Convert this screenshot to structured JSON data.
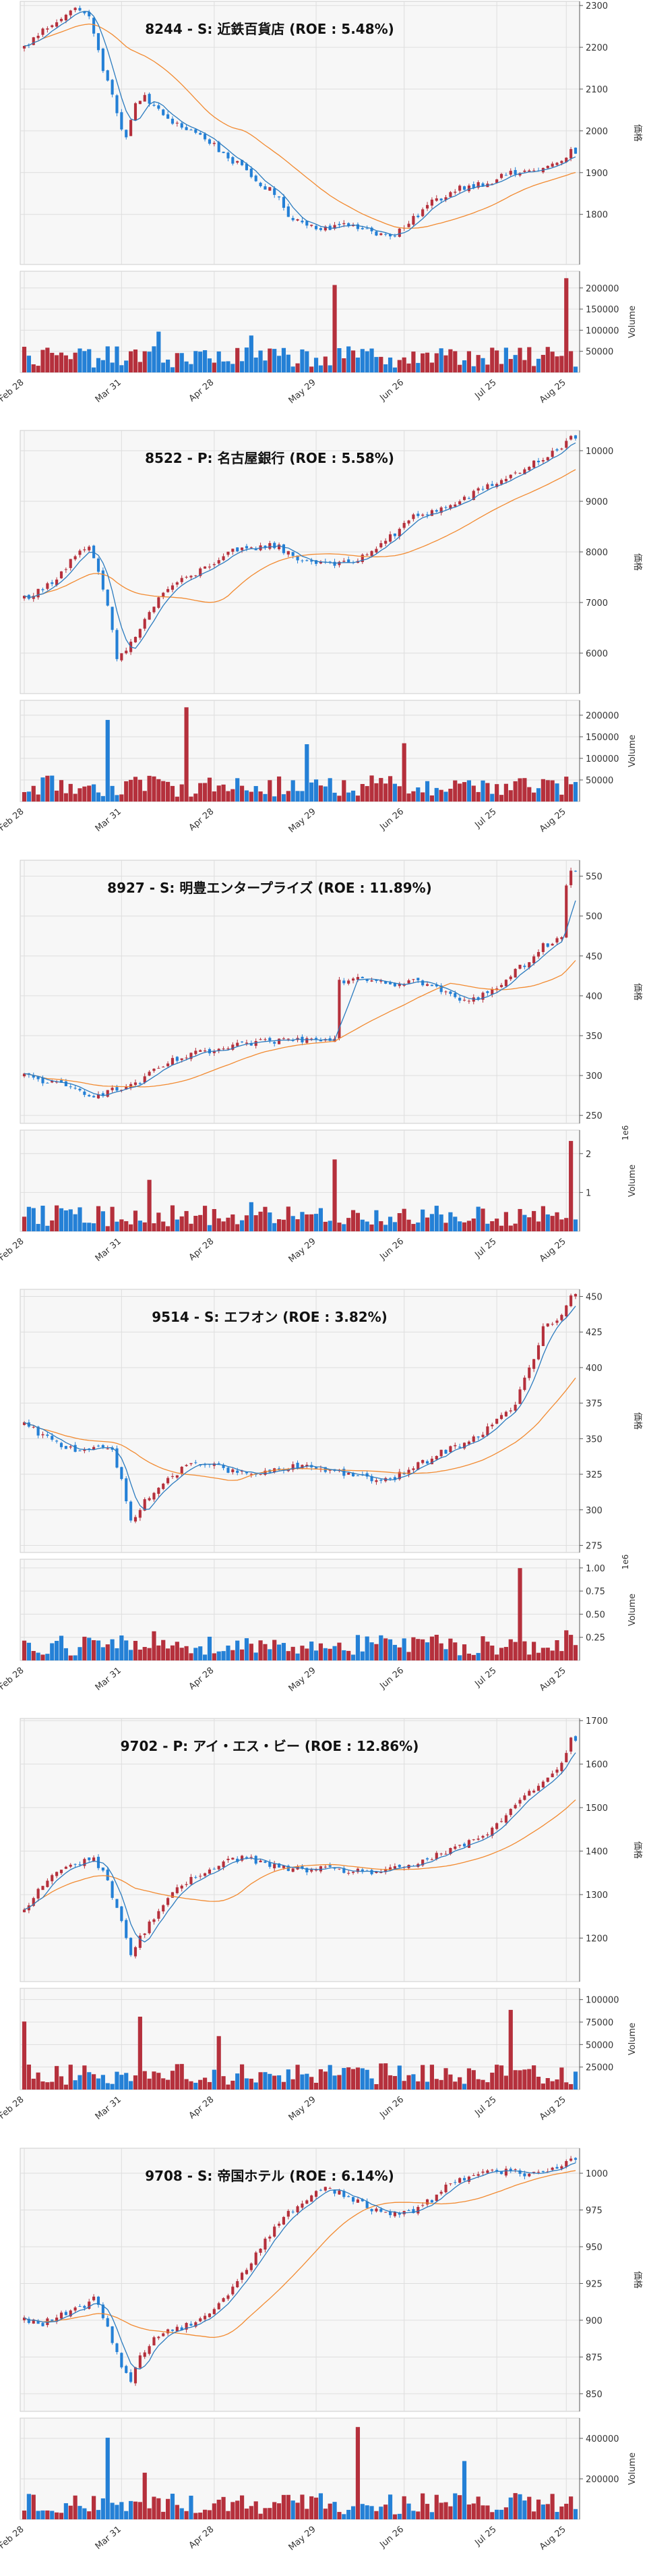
{
  "colors": {
    "up": "#b5303c",
    "down": "#2480d6",
    "ma_short": "#2b7bbf",
    "ma_long": "#f28a30",
    "panel_bg": "#f7f7f7",
    "grid": "#dedede"
  },
  "x_ticks": [
    "Feb 28",
    "Mar 31",
    "Apr 28",
    "May 29",
    "Jun 26",
    "Jul 25",
    "Aug 25"
  ],
  "chart_data": [
    {
      "type": "candlestick",
      "title": "8244 - S: 近鉄百貨店 (ROE : 5.48%)",
      "ylabel": "価格",
      "volume_label": "Volume",
      "volume_exponent": "",
      "ylim": [
        1680,
        2310
      ],
      "yticks": [
        1800,
        1900,
        2000,
        2100,
        2200,
        2300
      ],
      "vol_max": 230000,
      "vol_ticks": [
        50000,
        100000,
        150000,
        200000
      ],
      "vol_tick_labels": [
        "50000",
        "100000",
        "150000",
        "200000"
      ],
      "path": [
        [
          0,
          2200
        ],
        [
          4,
          2240
        ],
        [
          7,
          2265
        ],
        [
          10,
          2285
        ],
        [
          12,
          2295
        ],
        [
          14,
          2270
        ],
        [
          17,
          2150
        ],
        [
          19,
          2080
        ],
        [
          21,
          2010
        ],
        [
          22,
          1985
        ],
        [
          24,
          2060
        ],
        [
          26,
          2085
        ],
        [
          28,
          2055
        ],
        [
          31,
          2030
        ],
        [
          34,
          2010
        ],
        [
          37,
          1995
        ],
        [
          40,
          1975
        ],
        [
          43,
          1945
        ],
        [
          46,
          1920
        ],
        [
          50,
          1880
        ],
        [
          54,
          1850
        ],
        [
          57,
          1800
        ],
        [
          60,
          1780
        ],
        [
          63,
          1770
        ],
        [
          67,
          1770
        ],
        [
          71,
          1775
        ],
        [
          75,
          1760
        ],
        [
          79,
          1745
        ],
        [
          82,
          1765
        ],
        [
          85,
          1800
        ],
        [
          88,
          1830
        ],
        [
          91,
          1845
        ],
        [
          94,
          1865
        ],
        [
          97,
          1870
        ],
        [
          101,
          1880
        ],
        [
          104,
          1895
        ],
        [
          107,
          1900
        ],
        [
          110,
          1905
        ],
        [
          113,
          1915
        ],
        [
          116,
          1925
        ],
        [
          118,
          1950
        ]
      ],
      "vol_spikes": [
        [
          67,
          0.9
        ],
        [
          117,
          0.97
        ],
        [
          49,
          0.38
        ],
        [
          29,
          0.42
        ]
      ]
    },
    {
      "type": "candlestick",
      "title": "8522 - P: 名古屋銀行 (ROE : 5.58%)",
      "ylabel": "価格",
      "volume_label": "Volume",
      "volume_exponent": "",
      "ylim": [
        5200,
        10400
      ],
      "yticks": [
        6000,
        7000,
        8000,
        9000,
        10000
      ],
      "vol_max": 225000,
      "vol_ticks": [
        50000,
        100000,
        150000,
        200000
      ],
      "vol_tick_labels": [
        "50000",
        "100000",
        "150000",
        "200000"
      ],
      "path": [
        [
          0,
          7100
        ],
        [
          4,
          7250
        ],
        [
          8,
          7600
        ],
        [
          11,
          7950
        ],
        [
          14,
          8050
        ],
        [
          16,
          7600
        ],
        [
          18,
          6900
        ],
        [
          20,
          5900
        ],
        [
          22,
          6050
        ],
        [
          24,
          6350
        ],
        [
          27,
          6800
        ],
        [
          30,
          7200
        ],
        [
          33,
          7400
        ],
        [
          36,
          7500
        ],
        [
          39,
          7700
        ],
        [
          42,
          7850
        ],
        [
          45,
          8000
        ],
        [
          49,
          8050
        ],
        [
          52,
          8150
        ],
        [
          55,
          8100
        ],
        [
          58,
          7900
        ],
        [
          62,
          7800
        ],
        [
          66,
          7800
        ],
        [
          70,
          7750
        ],
        [
          73,
          7900
        ],
        [
          76,
          8100
        ],
        [
          80,
          8350
        ],
        [
          84,
          8700
        ],
        [
          88,
          8800
        ],
        [
          92,
          8900
        ],
        [
          96,
          9100
        ],
        [
          100,
          9300
        ],
        [
          104,
          9450
        ],
        [
          108,
          9650
        ],
        [
          112,
          9850
        ],
        [
          116,
          10050
        ],
        [
          118,
          10250
        ]
      ],
      "vol_spikes": [
        [
          35,
          0.97
        ],
        [
          18,
          0.84
        ],
        [
          61,
          0.59
        ],
        [
          82,
          0.6
        ]
      ]
    },
    {
      "type": "candlestick",
      "title": "8927 - S: 明豊エンタープライズ (ROE : 11.89%)",
      "ylabel": "価格",
      "volume_label": "Volume",
      "volume_exponent": "1e6",
      "ylim": [
        240,
        570
      ],
      "yticks": [
        250,
        300,
        350,
        400,
        450,
        500,
        550
      ],
      "vol_max": 2500000,
      "vol_ticks": [
        1000000,
        2000000
      ],
      "vol_tick_labels": [
        "1",
        "2"
      ],
      "path": [
        [
          0,
          300
        ],
        [
          5,
          292
        ],
        [
          10,
          284
        ],
        [
          15,
          276
        ],
        [
          20,
          282
        ],
        [
          25,
          292
        ],
        [
          28,
          305
        ],
        [
          32,
          318
        ],
        [
          36,
          326
        ],
        [
          40,
          330
        ],
        [
          44,
          334
        ],
        [
          48,
          340
        ],
        [
          52,
          342
        ],
        [
          56,
          345
        ],
        [
          60,
          345
        ],
        [
          64,
          347
        ],
        [
          67,
          348
        ],
        [
          68,
          418
        ],
        [
          72,
          424
        ],
        [
          76,
          420
        ],
        [
          80,
          415
        ],
        [
          84,
          420
        ],
        [
          88,
          412
        ],
        [
          92,
          400
        ],
        [
          96,
          392
        ],
        [
          100,
          405
        ],
        [
          104,
          420
        ],
        [
          108,
          440
        ],
        [
          112,
          462
        ],
        [
          116,
          476
        ],
        [
          117,
          540
        ],
        [
          118,
          555
        ]
      ],
      "vol_spikes": [
        [
          118,
          0.93
        ],
        [
          67,
          0.74
        ],
        [
          27,
          0.53
        ],
        [
          49,
          0.3
        ]
      ]
    },
    {
      "type": "candlestick",
      "title": "9514 - S: エフオン (ROE : 3.82%)",
      "ylabel": "価格",
      "volume_label": "Volume",
      "volume_exponent": "1e6",
      "ylim": [
        270,
        455
      ],
      "yticks": [
        275,
        300,
        325,
        350,
        375,
        400,
        425,
        450
      ],
      "vol_max": 1050000,
      "vol_ticks": [
        250000,
        500000,
        750000,
        1000000
      ],
      "vol_tick_labels": [
        "0.25",
        "0.50",
        "0.75",
        "1.00"
      ],
      "path": [
        [
          0,
          360
        ],
        [
          4,
          352
        ],
        [
          8,
          345
        ],
        [
          12,
          342
        ],
        [
          16,
          346
        ],
        [
          19,
          340
        ],
        [
          21,
          320
        ],
        [
          23,
          292
        ],
        [
          25,
          302
        ],
        [
          28,
          312
        ],
        [
          31,
          322
        ],
        [
          35,
          330
        ],
        [
          39,
          334
        ],
        [
          42,
          330
        ],
        [
          46,
          326
        ],
        [
          50,
          325
        ],
        [
          54,
          327
        ],
        [
          58,
          330
        ],
        [
          62,
          330
        ],
        [
          66,
          328
        ],
        [
          70,
          325
        ],
        [
          74,
          322
        ],
        [
          78,
          320
        ],
        [
          82,
          326
        ],
        [
          86,
          333
        ],
        [
          90,
          340
        ],
        [
          94,
          346
        ],
        [
          98,
          352
        ],
        [
          102,
          362
        ],
        [
          106,
          375
        ],
        [
          108,
          392
        ],
        [
          110,
          405
        ],
        [
          112,
          428
        ],
        [
          114,
          432
        ],
        [
          116,
          435
        ],
        [
          118,
          450
        ]
      ],
      "vol_spikes": [
        [
          107,
          0.95
        ],
        [
          28,
          0.3
        ],
        [
          117,
          0.31
        ]
      ]
    },
    {
      "type": "candlestick",
      "title": "9702 - P: アイ・エス・ビー (ROE : 12.86%)",
      "ylabel": "価格",
      "volume_label": "Volume",
      "volume_exponent": "",
      "ylim": [
        1100,
        1705
      ],
      "yticks": [
        1200,
        1300,
        1400,
        1500,
        1600,
        1700
      ],
      "vol_max": 108000,
      "vol_ticks": [
        25000,
        50000,
        75000,
        100000
      ],
      "vol_tick_labels": [
        "25000",
        "50000",
        "75000",
        "100000"
      ],
      "path": [
        [
          0,
          1260
        ],
        [
          3,
          1310
        ],
        [
          6,
          1345
        ],
        [
          9,
          1360
        ],
        [
          12,
          1375
        ],
        [
          15,
          1385
        ],
        [
          18,
          1330
        ],
        [
          21,
          1240
        ],
        [
          23,
          1160
        ],
        [
          25,
          1200
        ],
        [
          28,
          1250
        ],
        [
          31,
          1290
        ],
        [
          34,
          1320
        ],
        [
          37,
          1340
        ],
        [
          40,
          1360
        ],
        [
          44,
          1380
        ],
        [
          48,
          1385
        ],
        [
          52,
          1370
        ],
        [
          56,
          1360
        ],
        [
          60,
          1358
        ],
        [
          64,
          1358
        ],
        [
          68,
          1355
        ],
        [
          72,
          1355
        ],
        [
          76,
          1352
        ],
        [
          80,
          1358
        ],
        [
          84,
          1370
        ],
        [
          88,
          1385
        ],
        [
          92,
          1400
        ],
        [
          96,
          1420
        ],
        [
          100,
          1440
        ],
        [
          104,
          1480
        ],
        [
          108,
          1530
        ],
        [
          112,
          1560
        ],
        [
          116,
          1600
        ],
        [
          118,
          1660
        ]
      ],
      "vol_spikes": [
        [
          105,
          0.82
        ],
        [
          0,
          0.7
        ],
        [
          25,
          0.75
        ],
        [
          42,
          0.55
        ]
      ]
    },
    {
      "type": "candlestick",
      "title": "9708 - S: 帝国ホテル (ROE : 6.14%)",
      "ylabel": "価格",
      "volume_label": "Volume",
      "volume_exponent": "",
      "ylim": [
        838,
        1017
      ],
      "yticks": [
        850,
        875,
        900,
        925,
        950,
        975,
        1000
      ],
      "vol_max": 480000,
      "vol_ticks": [
        200000,
        400000
      ],
      "vol_tick_labels": [
        "200000",
        "400000"
      ],
      "path": [
        [
          0,
          900
        ],
        [
          4,
          898
        ],
        [
          8,
          903
        ],
        [
          12,
          908
        ],
        [
          15,
          915
        ],
        [
          18,
          895
        ],
        [
          21,
          870
        ],
        [
          23,
          858
        ],
        [
          25,
          875
        ],
        [
          28,
          888
        ],
        [
          31,
          893
        ],
        [
          34,
          895
        ],
        [
          37,
          900
        ],
        [
          40,
          905
        ],
        [
          44,
          918
        ],
        [
          48,
          935
        ],
        [
          52,
          955
        ],
        [
          56,
          970
        ],
        [
          60,
          980
        ],
        [
          63,
          988
        ],
        [
          66,
          990
        ],
        [
          69,
          985
        ],
        [
          72,
          980
        ],
        [
          76,
          975
        ],
        [
          80,
          972
        ],
        [
          84,
          975
        ],
        [
          88,
          982
        ],
        [
          92,
          995
        ],
        [
          96,
          998
        ],
        [
          100,
          1000
        ],
        [
          104,
          1002
        ],
        [
          108,
          1000
        ],
        [
          112,
          1002
        ],
        [
          116,
          1005
        ],
        [
          118,
          1010
        ]
      ],
      "vol_spikes": [
        [
          72,
          0.95
        ],
        [
          18,
          0.84
        ],
        [
          95,
          0.6
        ],
        [
          26,
          0.48
        ]
      ]
    }
  ]
}
